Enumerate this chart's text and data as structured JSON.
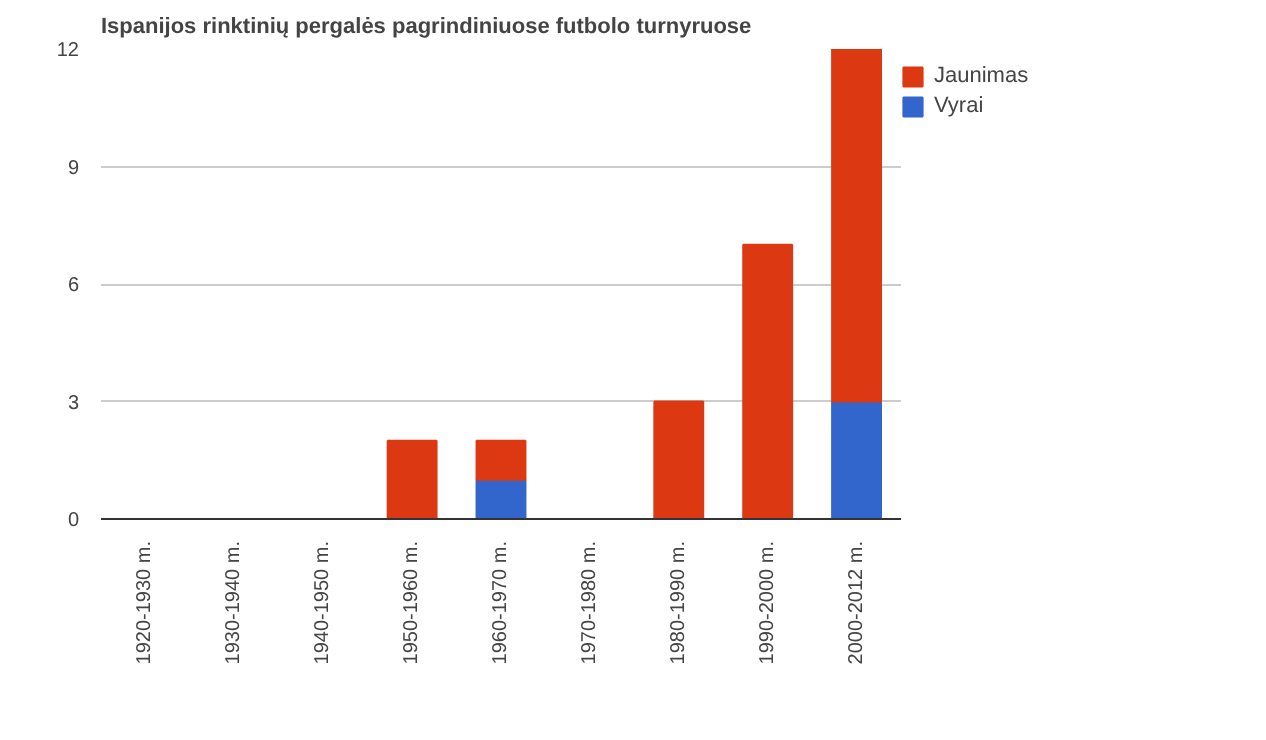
{
  "chart_data": {
    "type": "bar",
    "title": "Ispanijos rinktinių pergalės pagrindiniuose futbolo turnyruose",
    "categories": [
      "1920-1930 m.",
      "1930-1940 m.",
      "1940-1950 m.",
      "1950-1960 m.",
      "1960-1970 m.",
      "1970-1980 m.",
      "1980-1990 m.",
      "1990-2000 m.",
      "2000-2012 m."
    ],
    "stacked": true,
    "series": [
      {
        "name": "Vyrai",
        "color": "#3366cc",
        "values": [
          0,
          0,
          0,
          0,
          1,
          0,
          0,
          0,
          3
        ]
      },
      {
        "name": "Jaunimas",
        "color": "#dc3912",
        "values": [
          0,
          0,
          0,
          2,
          1,
          0,
          3,
          7,
          9
        ]
      }
    ],
    "ylim": [
      0,
      12
    ],
    "yticks": [
      0,
      3,
      6,
      9,
      12
    ],
    "grid": "y",
    "legend": "top right"
  }
}
